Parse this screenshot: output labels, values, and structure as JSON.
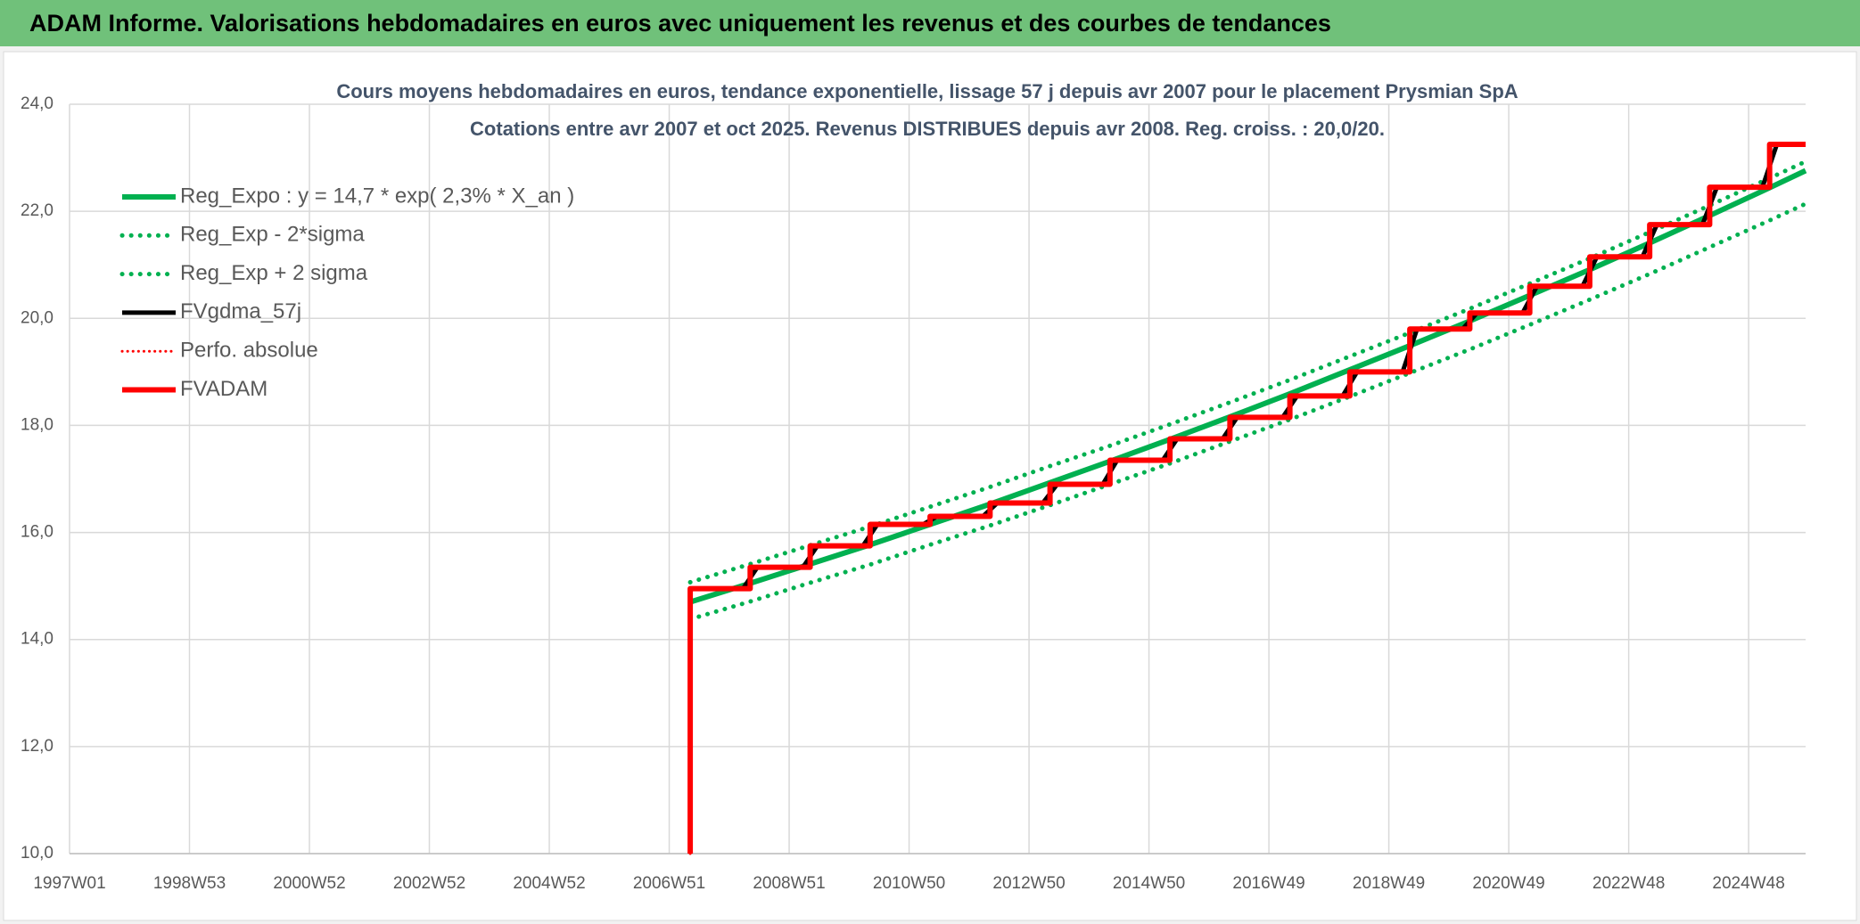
{
  "header": {
    "title": "ADAM Informe. Valorisations hebdomadaires en euros avec uniquement les revenus et des courbes de tendances"
  },
  "chart_data": {
    "type": "line",
    "title": "Cours moyens hebdomadaires en euros, tendance exponentielle, lissage 57 j depuis avr 2007 pour le placement Prysmian SpA",
    "subtitle": "Cotations entre avr 2007 et oct 2025. Revenus DISTRIBUES depuis avr 2008. Reg. croiss. : 20,0/20.",
    "xlim": [
      1997,
      2025.95
    ],
    "xticks": [
      {
        "value": 1997,
        "label": "1997W01"
      },
      {
        "value": 1999,
        "label": "1998W53"
      },
      {
        "value": 2001,
        "label": "2000W52"
      },
      {
        "value": 2003,
        "label": "2002W52"
      },
      {
        "value": 2005,
        "label": "2004W52"
      },
      {
        "value": 2007,
        "label": "2006W51"
      },
      {
        "value": 2009,
        "label": "2008W51"
      },
      {
        "value": 2011,
        "label": "2010W50"
      },
      {
        "value": 2013,
        "label": "2012W50"
      },
      {
        "value": 2015,
        "label": "2014W50"
      },
      {
        "value": 2017,
        "label": "2016W49"
      },
      {
        "value": 2019,
        "label": "2018W49"
      },
      {
        "value": 2021,
        "label": "2020W49"
      },
      {
        "value": 2023,
        "label": "2022W48"
      },
      {
        "value": 2025,
        "label": "2024W48"
      }
    ],
    "ylim": [
      10,
      24
    ],
    "yticks": [
      {
        "value": 10,
        "label": "10,0"
      },
      {
        "value": 12,
        "label": "12,0"
      },
      {
        "value": 14,
        "label": "14,0"
      },
      {
        "value": 16,
        "label": "16,0"
      },
      {
        "value": 18,
        "label": "18,0"
      },
      {
        "value": 20,
        "label": "20,0"
      },
      {
        "value": 22,
        "label": "22,0"
      },
      {
        "value": 24,
        "label": "24,0"
      }
    ],
    "grid": true,
    "legend": "top-left",
    "series": [
      {
        "name": "Reg_Expo : y = 14,7 * exp( 2,3% *  X_an )",
        "color": "#00b050",
        "style": "solid",
        "width": 6,
        "x": [
          2007.35,
          2008.35,
          2009.35,
          2010.35,
          2011.35,
          2012.35,
          2013.35,
          2014.35,
          2015.35,
          2016.35,
          2017.35,
          2018.35,
          2019.35,
          2020.35,
          2021.35,
          2022.35,
          2023.35,
          2024.35,
          2025.35,
          2025.95
        ],
        "values": [
          14.7,
          15.05,
          15.41,
          15.77,
          16.15,
          16.53,
          16.93,
          17.33,
          17.74,
          18.16,
          18.59,
          19.04,
          19.49,
          19.95,
          20.43,
          20.91,
          21.41,
          21.92,
          22.44,
          22.76
        ]
      },
      {
        "name": "Reg_Exp - 2*sigma",
        "color": "#00b050",
        "style": "dotted",
        "width": 5,
        "x": [
          2007.35,
          2008.35,
          2009.35,
          2010.35,
          2011.35,
          2012.35,
          2013.35,
          2014.35,
          2015.35,
          2016.35,
          2017.35,
          2018.35,
          2019.35,
          2020.35,
          2021.35,
          2022.35,
          2023.35,
          2024.35,
          2025.35,
          2025.95
        ],
        "values": [
          14.38,
          14.71,
          15.06,
          15.4,
          15.77,
          16.13,
          16.51,
          16.9,
          17.29,
          17.7,
          18.11,
          18.54,
          18.98,
          19.42,
          19.88,
          20.35,
          20.83,
          21.33,
          21.83,
          22.14
        ]
      },
      {
        "name": "Reg_Exp + 2 sigma",
        "color": "#00b050",
        "style": "dotted",
        "width": 5,
        "x": [
          2007.35,
          2008.35,
          2009.35,
          2010.35,
          2011.35,
          2012.35,
          2013.35,
          2014.35,
          2015.35,
          2016.35,
          2017.35,
          2018.35,
          2019.35,
          2020.35,
          2021.35,
          2022.35,
          2023.35,
          2024.35,
          2025.35,
          2025.95
        ],
        "values": [
          15.07,
          15.41,
          15.76,
          16.11,
          16.48,
          16.85,
          17.24,
          17.62,
          18.02,
          18.43,
          18.85,
          19.29,
          19.73,
          20.18,
          20.65,
          21.12,
          21.61,
          22.11,
          22.62,
          22.93
        ]
      },
      {
        "name": "FVgdma_57j",
        "color": "#000000",
        "style": "solid",
        "width": 5,
        "x": [
          2007.35,
          2008.23,
          2008.47,
          2009.23,
          2009.47,
          2010.23,
          2010.47,
          2011.23,
          2011.47,
          2012.23,
          2012.47,
          2013.23,
          2013.47,
          2014.23,
          2014.47,
          2015.23,
          2015.47,
          2016.23,
          2016.47,
          2017.23,
          2017.47,
          2018.23,
          2018.47,
          2019.23,
          2019.47,
          2020.23,
          2020.47,
          2021.23,
          2021.47,
          2022.23,
          2022.47,
          2023.23,
          2023.47,
          2024.23,
          2024.47,
          2025.23,
          2025.47,
          2025.95
        ],
        "values": [
          14.95,
          14.95,
          15.35,
          15.35,
          15.75,
          15.75,
          16.15,
          16.15,
          16.3,
          16.3,
          16.55,
          16.55,
          16.9,
          16.9,
          17.35,
          17.35,
          17.75,
          17.75,
          18.15,
          18.15,
          18.55,
          18.55,
          19.0,
          19.0,
          19.8,
          19.8,
          20.1,
          20.1,
          20.6,
          20.6,
          21.15,
          21.15,
          21.75,
          21.75,
          22.45,
          22.45,
          23.25,
          23.25
        ]
      },
      {
        "name": "Perfo. absolue",
        "color": "#ff0000",
        "style": "dotted",
        "width": 3,
        "x": [
          2007.35,
          2007.35,
          2008.35,
          2008.35,
          2009.35,
          2009.35,
          2010.35,
          2010.35,
          2011.35,
          2011.35,
          2012.35,
          2012.35,
          2013.35,
          2013.35,
          2014.35,
          2014.35,
          2015.35,
          2015.35,
          2016.35,
          2016.35,
          2017.35,
          2017.35,
          2018.35,
          2018.35,
          2019.35,
          2019.35,
          2020.35,
          2020.35,
          2021.35,
          2021.35,
          2022.35,
          2022.35,
          2023.35,
          2023.35,
          2024.35,
          2024.35,
          2025.35,
          2025.35,
          2025.95
        ],
        "values": [
          10,
          14.95,
          14.95,
          15.35,
          15.35,
          15.75,
          15.75,
          16.15,
          16.15,
          16.3,
          16.3,
          16.55,
          16.55,
          16.9,
          16.9,
          17.35,
          17.35,
          17.75,
          17.75,
          18.15,
          18.15,
          18.55,
          18.55,
          19.0,
          19.0,
          19.8,
          19.8,
          20.1,
          20.1,
          20.6,
          20.6,
          21.15,
          21.15,
          21.75,
          21.75,
          22.45,
          22.45,
          23.25,
          23.25
        ]
      },
      {
        "name": "FVADAM",
        "color": "#ff0000",
        "style": "solid",
        "width": 6,
        "x": [
          2007.35,
          2007.35,
          2008.35,
          2008.35,
          2009.35,
          2009.35,
          2010.35,
          2010.35,
          2011.35,
          2011.35,
          2012.35,
          2012.35,
          2013.35,
          2013.35,
          2014.35,
          2014.35,
          2015.35,
          2015.35,
          2016.35,
          2016.35,
          2017.35,
          2017.35,
          2018.35,
          2018.35,
          2019.35,
          2019.35,
          2020.35,
          2020.35,
          2021.35,
          2021.35,
          2022.35,
          2022.35,
          2023.35,
          2023.35,
          2024.35,
          2024.35,
          2025.35,
          2025.35,
          2025.95
        ],
        "values": [
          10,
          14.95,
          14.95,
          15.35,
          15.35,
          15.75,
          15.75,
          16.15,
          16.15,
          16.3,
          16.3,
          16.55,
          16.55,
          16.9,
          16.9,
          17.35,
          17.35,
          17.75,
          17.75,
          18.15,
          18.15,
          18.55,
          18.55,
          19.0,
          19.0,
          19.8,
          19.8,
          20.1,
          20.1,
          20.6,
          20.6,
          21.15,
          21.15,
          21.75,
          21.75,
          22.45,
          22.45,
          23.25,
          23.25
        ]
      }
    ]
  }
}
